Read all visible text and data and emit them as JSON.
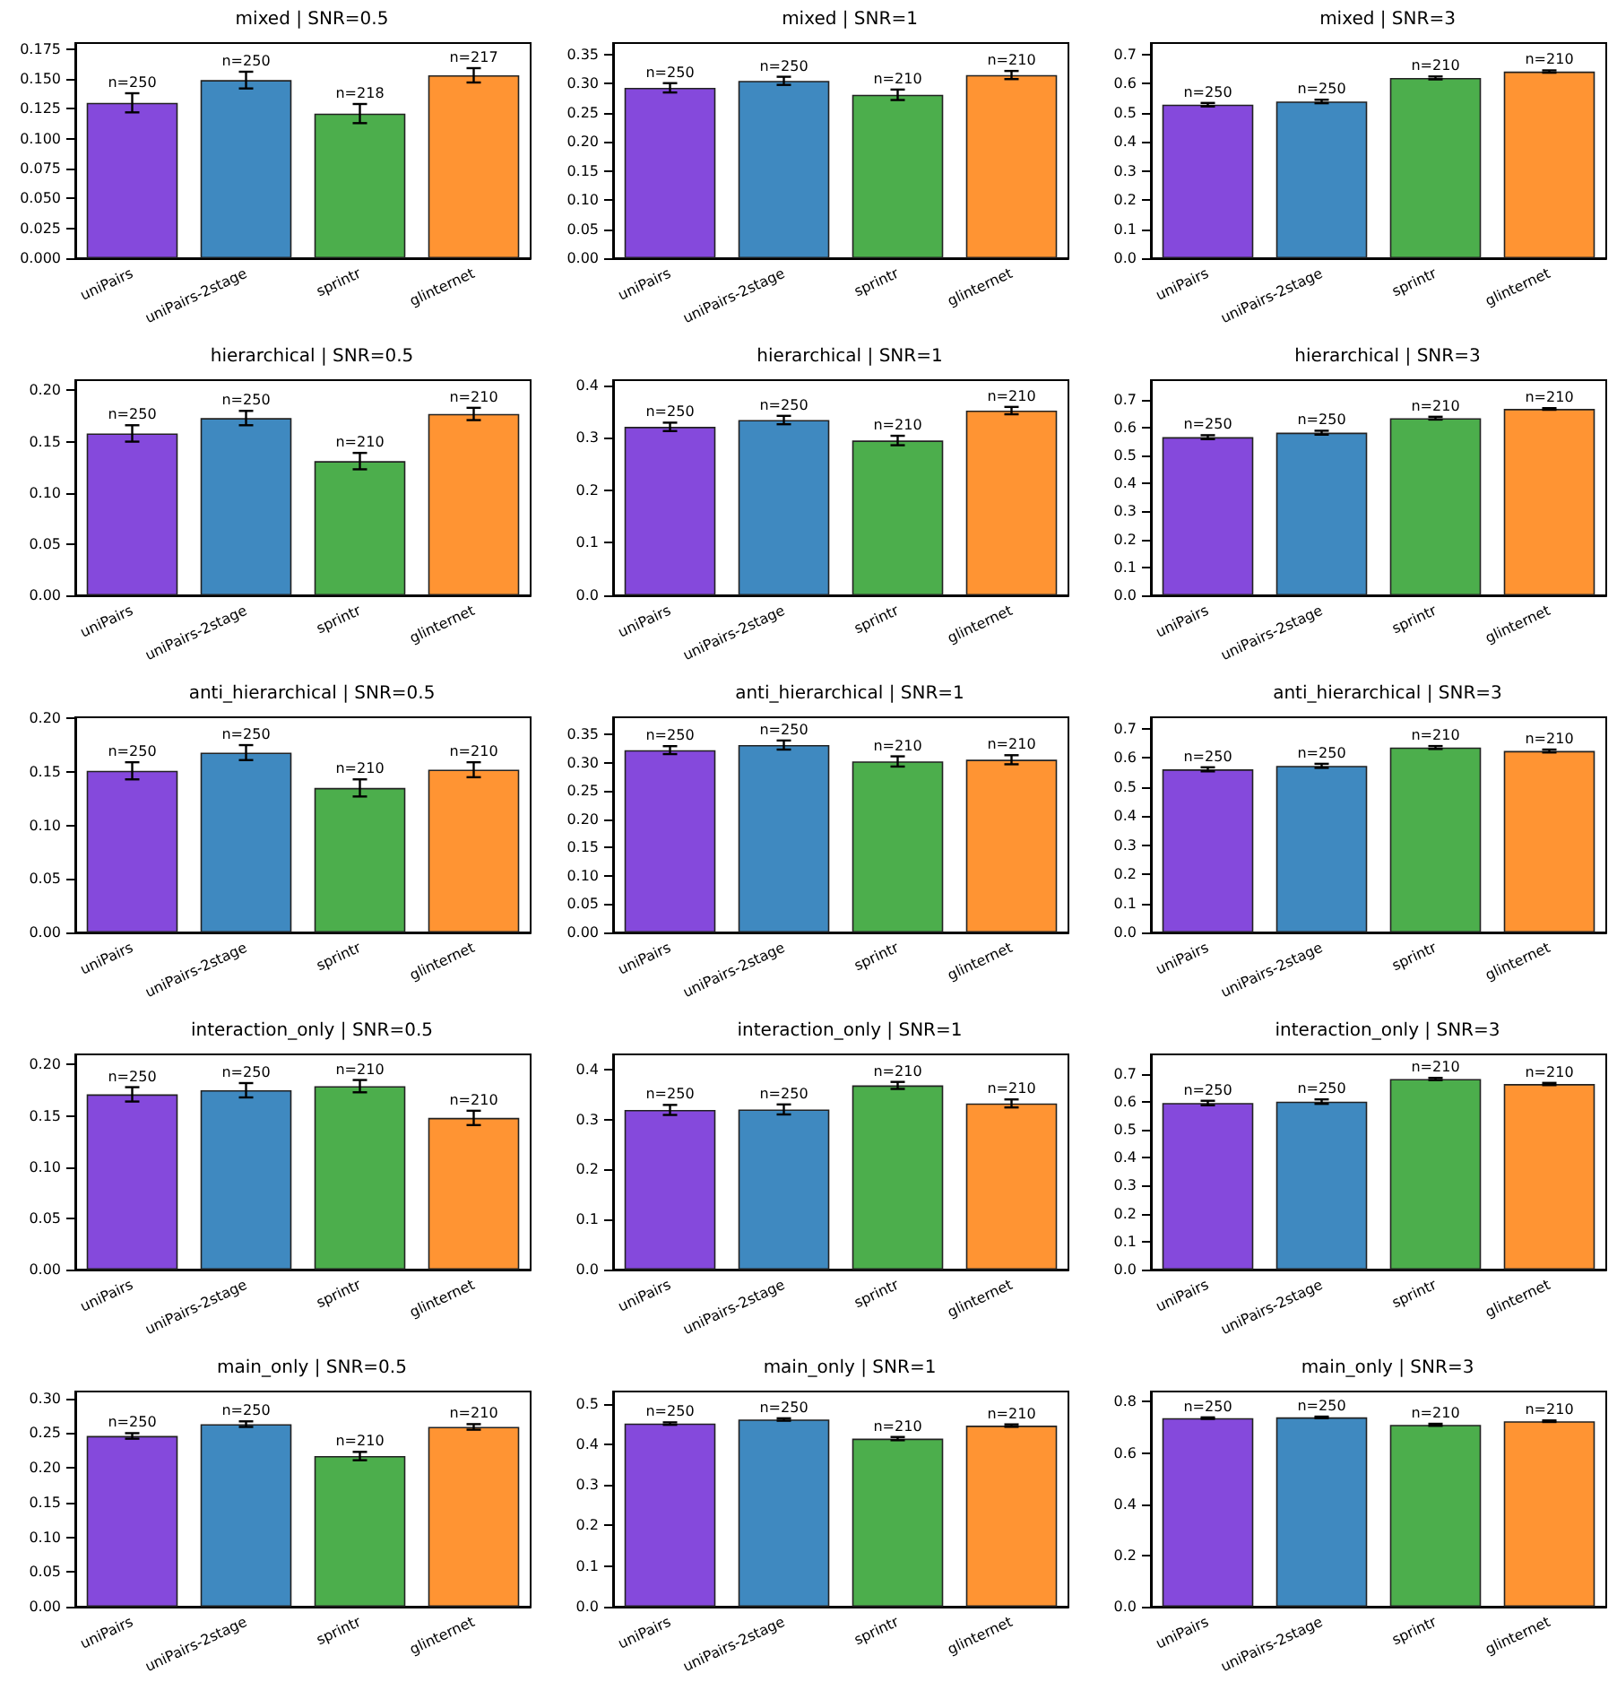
{
  "chart_data": [
    {
      "type": "bar",
      "title": "mixed | SNR=0.5",
      "categories": [
        "uniPairs",
        "uniPairs-2stage",
        "sprintr",
        "glinternet"
      ],
      "values": [
        0.13,
        0.149,
        0.121,
        0.153
      ],
      "errors": [
        0.008,
        0.007,
        0.008,
        0.006
      ],
      "annotations": [
        "n=250",
        "n=250",
        "n=218",
        "n=217"
      ],
      "colors": [
        "#8549dc",
        "#3f89c0",
        "#4cae4c",
        "#ff9433"
      ],
      "ylim": [
        0,
        0.18
      ],
      "yticks": [
        {
          "value": 0,
          "label": "0.000"
        },
        {
          "value": 0.025,
          "label": "0.025"
        },
        {
          "value": 0.05,
          "label": "0.050"
        },
        {
          "value": 0.075,
          "label": "0.075"
        },
        {
          "value": 0.1,
          "label": "0.100"
        },
        {
          "value": 0.125,
          "label": "0.125"
        },
        {
          "value": 0.15,
          "label": "0.150"
        },
        {
          "value": 0.175,
          "label": "0.175"
        }
      ]
    },
    {
      "type": "bar",
      "title": "mixed | SNR=1",
      "categories": [
        "uniPairs",
        "uniPairs-2stage",
        "sprintr",
        "glinternet"
      ],
      "values": [
        0.293,
        0.305,
        0.281,
        0.315
      ],
      "errors": [
        0.008,
        0.007,
        0.009,
        0.007
      ],
      "annotations": [
        "n=250",
        "n=250",
        "n=210",
        "n=210"
      ],
      "colors": [
        "#8549dc",
        "#3f89c0",
        "#4cae4c",
        "#ff9433"
      ],
      "ylim": [
        0,
        0.37
      ],
      "yticks": [
        {
          "value": 0,
          "label": "0.00"
        },
        {
          "value": 0.05,
          "label": "0.05"
        },
        {
          "value": 0.1,
          "label": "0.10"
        },
        {
          "value": 0.15,
          "label": "0.15"
        },
        {
          "value": 0.2,
          "label": "0.20"
        },
        {
          "value": 0.25,
          "label": "0.25"
        },
        {
          "value": 0.3,
          "label": "0.30"
        },
        {
          "value": 0.35,
          "label": "0.35"
        }
      ]
    },
    {
      "type": "bar",
      "title": "mixed | SNR=3",
      "categories": [
        "uniPairs",
        "uniPairs-2stage",
        "sprintr",
        "glinternet"
      ],
      "values": [
        0.528,
        0.539,
        0.62,
        0.642
      ],
      "errors": [
        0.006,
        0.006,
        0.005,
        0.004
      ],
      "annotations": [
        "n=250",
        "n=250",
        "n=210",
        "n=210"
      ],
      "colors": [
        "#8549dc",
        "#3f89c0",
        "#4cae4c",
        "#ff9433"
      ],
      "ylim": [
        0,
        0.74
      ],
      "yticks": [
        {
          "value": 0,
          "label": "0.0"
        },
        {
          "value": 0.1,
          "label": "0.1"
        },
        {
          "value": 0.2,
          "label": "0.2"
        },
        {
          "value": 0.3,
          "label": "0.3"
        },
        {
          "value": 0.4,
          "label": "0.4"
        },
        {
          "value": 0.5,
          "label": "0.5"
        },
        {
          "value": 0.6,
          "label": "0.6"
        },
        {
          "value": 0.7,
          "label": "0.7"
        }
      ]
    },
    {
      "type": "bar",
      "title": "hierarchical | SNR=0.5",
      "categories": [
        "uniPairs",
        "uniPairs-2stage",
        "sprintr",
        "glinternet"
      ],
      "values": [
        0.158,
        0.173,
        0.131,
        0.177
      ],
      "errors": [
        0.008,
        0.007,
        0.008,
        0.006
      ],
      "annotations": [
        "n=250",
        "n=250",
        "n=210",
        "n=210"
      ],
      "colors": [
        "#8549dc",
        "#3f89c0",
        "#4cae4c",
        "#ff9433"
      ],
      "ylim": [
        0,
        0.21
      ],
      "yticks": [
        {
          "value": 0,
          "label": "0.00"
        },
        {
          "value": 0.05,
          "label": "0.05"
        },
        {
          "value": 0.1,
          "label": "0.10"
        },
        {
          "value": 0.15,
          "label": "0.15"
        },
        {
          "value": 0.2,
          "label": "0.20"
        }
      ]
    },
    {
      "type": "bar",
      "title": "hierarchical | SNR=1",
      "categories": [
        "uniPairs",
        "uniPairs-2stage",
        "sprintr",
        "glinternet"
      ],
      "values": [
        0.321,
        0.334,
        0.295,
        0.352
      ],
      "errors": [
        0.008,
        0.008,
        0.009,
        0.007
      ],
      "annotations": [
        "n=250",
        "n=250",
        "n=210",
        "n=210"
      ],
      "colors": [
        "#8549dc",
        "#3f89c0",
        "#4cae4c",
        "#ff9433"
      ],
      "ylim": [
        0,
        0.41
      ],
      "yticks": [
        {
          "value": 0,
          "label": "0.0"
        },
        {
          "value": 0.1,
          "label": "0.1"
        },
        {
          "value": 0.2,
          "label": "0.2"
        },
        {
          "value": 0.3,
          "label": "0.3"
        },
        {
          "value": 0.4,
          "label": "0.4"
        }
      ]
    },
    {
      "type": "bar",
      "title": "hierarchical | SNR=3",
      "categories": [
        "uniPairs",
        "uniPairs-2stage",
        "sprintr",
        "glinternet"
      ],
      "values": [
        0.566,
        0.582,
        0.634,
        0.667
      ],
      "errors": [
        0.007,
        0.007,
        0.005,
        0.003
      ],
      "annotations": [
        "n=250",
        "n=250",
        "n=210",
        "n=210"
      ],
      "colors": [
        "#8549dc",
        "#3f89c0",
        "#4cae4c",
        "#ff9433"
      ],
      "ylim": [
        0,
        0.77
      ],
      "yticks": [
        {
          "value": 0,
          "label": "0.0"
        },
        {
          "value": 0.1,
          "label": "0.1"
        },
        {
          "value": 0.2,
          "label": "0.2"
        },
        {
          "value": 0.3,
          "label": "0.3"
        },
        {
          "value": 0.4,
          "label": "0.4"
        },
        {
          "value": 0.5,
          "label": "0.5"
        },
        {
          "value": 0.6,
          "label": "0.6"
        },
        {
          "value": 0.7,
          "label": "0.7"
        }
      ]
    },
    {
      "type": "bar",
      "title": "anti_hierarchical | SNR=0.5",
      "categories": [
        "uniPairs",
        "uniPairs-2stage",
        "sprintr",
        "glinternet"
      ],
      "values": [
        0.151,
        0.168,
        0.135,
        0.152
      ],
      "errors": [
        0.008,
        0.007,
        0.008,
        0.007
      ],
      "annotations": [
        "n=250",
        "n=250",
        "n=210",
        "n=210"
      ],
      "colors": [
        "#8549dc",
        "#3f89c0",
        "#4cae4c",
        "#ff9433"
      ],
      "ylim": [
        0,
        0.201
      ],
      "yticks": [
        {
          "value": 0,
          "label": "0.00"
        },
        {
          "value": 0.05,
          "label": "0.05"
        },
        {
          "value": 0.1,
          "label": "0.10"
        },
        {
          "value": 0.15,
          "label": "0.15"
        },
        {
          "value": 0.2,
          "label": "0.20"
        }
      ]
    },
    {
      "type": "bar",
      "title": "anti_hierarchical | SNR=1",
      "categories": [
        "uniPairs",
        "uniPairs-2stage",
        "sprintr",
        "glinternet"
      ],
      "values": [
        0.322,
        0.331,
        0.302,
        0.305
      ],
      "errors": [
        0.007,
        0.008,
        0.009,
        0.008
      ],
      "annotations": [
        "n=250",
        "n=250",
        "n=210",
        "n=210"
      ],
      "colors": [
        "#8549dc",
        "#3f89c0",
        "#4cae4c",
        "#ff9433"
      ],
      "ylim": [
        0,
        0.38
      ],
      "yticks": [
        {
          "value": 0,
          "label": "0.00"
        },
        {
          "value": 0.05,
          "label": "0.05"
        },
        {
          "value": 0.1,
          "label": "0.10"
        },
        {
          "value": 0.15,
          "label": "0.15"
        },
        {
          "value": 0.2,
          "label": "0.20"
        },
        {
          "value": 0.25,
          "label": "0.25"
        },
        {
          "value": 0.3,
          "label": "0.30"
        },
        {
          "value": 0.35,
          "label": "0.35"
        }
      ]
    },
    {
      "type": "bar",
      "title": "anti_hierarchical | SNR=3",
      "categories": [
        "uniPairs",
        "uniPairs-2stage",
        "sprintr",
        "glinternet"
      ],
      "values": [
        0.561,
        0.573,
        0.636,
        0.624
      ],
      "errors": [
        0.007,
        0.007,
        0.005,
        0.005
      ],
      "annotations": [
        "n=250",
        "n=250",
        "n=210",
        "n=210"
      ],
      "colors": [
        "#8549dc",
        "#3f89c0",
        "#4cae4c",
        "#ff9433"
      ],
      "ylim": [
        0,
        0.74
      ],
      "yticks": [
        {
          "value": 0,
          "label": "0.0"
        },
        {
          "value": 0.1,
          "label": "0.1"
        },
        {
          "value": 0.2,
          "label": "0.2"
        },
        {
          "value": 0.3,
          "label": "0.3"
        },
        {
          "value": 0.4,
          "label": "0.4"
        },
        {
          "value": 0.5,
          "label": "0.5"
        },
        {
          "value": 0.6,
          "label": "0.6"
        },
        {
          "value": 0.7,
          "label": "0.7"
        }
      ]
    },
    {
      "type": "bar",
      "title": "interaction_only | SNR=0.5",
      "categories": [
        "uniPairs",
        "uniPairs-2stage",
        "sprintr",
        "glinternet"
      ],
      "values": [
        0.171,
        0.175,
        0.179,
        0.148
      ],
      "errors": [
        0.007,
        0.007,
        0.006,
        0.007
      ],
      "annotations": [
        "n=250",
        "n=250",
        "n=210",
        "n=210"
      ],
      "colors": [
        "#8549dc",
        "#3f89c0",
        "#4cae4c",
        "#ff9433"
      ],
      "ylim": [
        0,
        0.21
      ],
      "yticks": [
        {
          "value": 0,
          "label": "0.00"
        },
        {
          "value": 0.05,
          "label": "0.05"
        },
        {
          "value": 0.1,
          "label": "0.10"
        },
        {
          "value": 0.15,
          "label": "0.15"
        },
        {
          "value": 0.2,
          "label": "0.20"
        }
      ]
    },
    {
      "type": "bar",
      "title": "interaction_only | SNR=1",
      "categories": [
        "uniPairs",
        "uniPairs-2stage",
        "sprintr",
        "glinternet"
      ],
      "values": [
        0.319,
        0.32,
        0.368,
        0.332
      ],
      "errors": [
        0.01,
        0.01,
        0.007,
        0.008
      ],
      "annotations": [
        "n=250",
        "n=250",
        "n=210",
        "n=210"
      ],
      "colors": [
        "#8549dc",
        "#3f89c0",
        "#4cae4c",
        "#ff9433"
      ],
      "ylim": [
        0,
        0.43
      ],
      "yticks": [
        {
          "value": 0,
          "label": "0.0"
        },
        {
          "value": 0.1,
          "label": "0.1"
        },
        {
          "value": 0.2,
          "label": "0.2"
        },
        {
          "value": 0.3,
          "label": "0.3"
        },
        {
          "value": 0.4,
          "label": "0.4"
        }
      ]
    },
    {
      "type": "bar",
      "title": "interaction_only | SNR=3",
      "categories": [
        "uniPairs",
        "uniPairs-2stage",
        "sprintr",
        "glinternet"
      ],
      "values": [
        0.596,
        0.601,
        0.682,
        0.664
      ],
      "errors": [
        0.008,
        0.008,
        0.004,
        0.004
      ],
      "annotations": [
        "n=250",
        "n=250",
        "n=210",
        "n=210"
      ],
      "colors": [
        "#8549dc",
        "#3f89c0",
        "#4cae4c",
        "#ff9433"
      ],
      "ylim": [
        0,
        0.77
      ],
      "yticks": [
        {
          "value": 0,
          "label": "0.0"
        },
        {
          "value": 0.1,
          "label": "0.1"
        },
        {
          "value": 0.2,
          "label": "0.2"
        },
        {
          "value": 0.3,
          "label": "0.3"
        },
        {
          "value": 0.4,
          "label": "0.4"
        },
        {
          "value": 0.5,
          "label": "0.5"
        },
        {
          "value": 0.6,
          "label": "0.6"
        },
        {
          "value": 0.7,
          "label": "0.7"
        }
      ]
    },
    {
      "type": "bar",
      "title": "main_only | SNR=0.5",
      "categories": [
        "uniPairs",
        "uniPairs-2stage",
        "sprintr",
        "glinternet"
      ],
      "values": [
        0.246,
        0.263,
        0.217,
        0.259
      ],
      "errors": [
        0.004,
        0.004,
        0.006,
        0.004
      ],
      "annotations": [
        "n=250",
        "n=250",
        "n=210",
        "n=210"
      ],
      "colors": [
        "#8549dc",
        "#3f89c0",
        "#4cae4c",
        "#ff9433"
      ],
      "ylim": [
        0,
        0.31
      ],
      "yticks": [
        {
          "value": 0,
          "label": "0.00"
        },
        {
          "value": 0.05,
          "label": "0.05"
        },
        {
          "value": 0.1,
          "label": "0.10"
        },
        {
          "value": 0.15,
          "label": "0.15"
        },
        {
          "value": 0.2,
          "label": "0.20"
        },
        {
          "value": 0.25,
          "label": "0.25"
        },
        {
          "value": 0.3,
          "label": "0.30"
        }
      ]
    },
    {
      "type": "bar",
      "title": "main_only | SNR=1",
      "categories": [
        "uniPairs",
        "uniPairs-2stage",
        "sprintr",
        "glinternet"
      ],
      "values": [
        0.451,
        0.461,
        0.414,
        0.446
      ],
      "errors": [
        0.003,
        0.003,
        0.004,
        0.003
      ],
      "annotations": [
        "n=250",
        "n=250",
        "n=210",
        "n=210"
      ],
      "colors": [
        "#8549dc",
        "#3f89c0",
        "#4cae4c",
        "#ff9433"
      ],
      "ylim": [
        0,
        0.53
      ],
      "yticks": [
        {
          "value": 0,
          "label": "0.0"
        },
        {
          "value": 0.1,
          "label": "0.1"
        },
        {
          "value": 0.2,
          "label": "0.2"
        },
        {
          "value": 0.3,
          "label": "0.3"
        },
        {
          "value": 0.4,
          "label": "0.4"
        },
        {
          "value": 0.5,
          "label": "0.5"
        }
      ]
    },
    {
      "type": "bar",
      "title": "main_only | SNR=3",
      "categories": [
        "uniPairs",
        "uniPairs-2stage",
        "sprintr",
        "glinternet"
      ],
      "values": [
        0.736,
        0.739,
        0.71,
        0.724
      ],
      "errors": [
        0.003,
        0.003,
        0.004,
        0.003
      ],
      "annotations": [
        "n=250",
        "n=250",
        "n=210",
        "n=210"
      ],
      "colors": [
        "#8549dc",
        "#3f89c0",
        "#4cae4c",
        "#ff9433"
      ],
      "ylim": [
        0,
        0.84
      ],
      "yticks": [
        {
          "value": 0,
          "label": "0.0"
        },
        {
          "value": 0.2,
          "label": "0.2"
        },
        {
          "value": 0.4,
          "label": "0.4"
        },
        {
          "value": 0.6,
          "label": "0.6"
        },
        {
          "value": 0.8,
          "label": "0.8"
        }
      ]
    }
  ]
}
